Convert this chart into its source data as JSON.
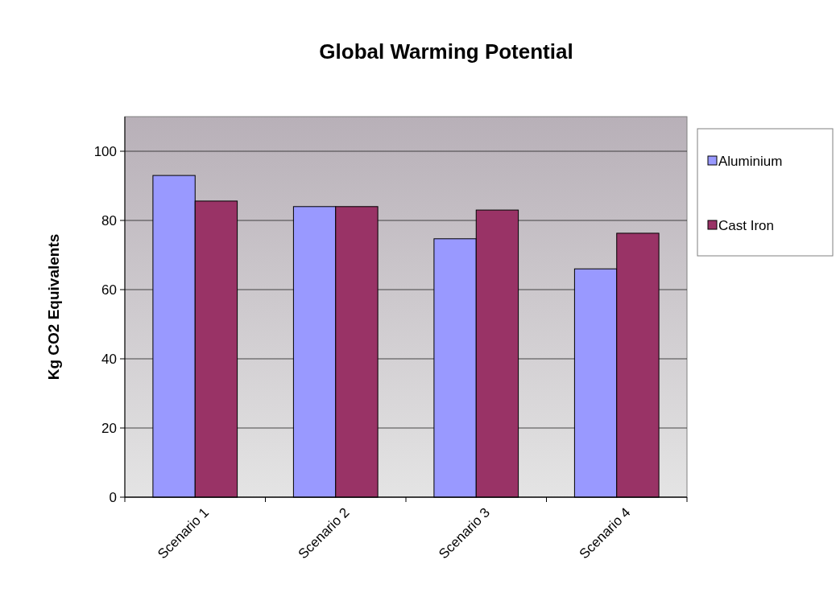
{
  "chart_data": {
    "type": "bar",
    "title": "Global Warming Potential",
    "ylabel": "Kg CO2 Equivalents",
    "categories": [
      "Scenario 1",
      "Scenario 2",
      "Scenario 3",
      "Scenario 4"
    ],
    "series": [
      {
        "name": "Aluminium",
        "color": "#9999ff",
        "values": [
          93,
          84,
          74.7,
          66
        ]
      },
      {
        "name": "Cast Iron",
        "color": "#993366",
        "values": [
          85.6,
          84,
          83,
          76.3
        ]
      }
    ],
    "ylim": [
      0,
      110
    ],
    "yticks": [
      0,
      20,
      40,
      60,
      80,
      100
    ],
    "grid": "y",
    "legend": "right"
  }
}
